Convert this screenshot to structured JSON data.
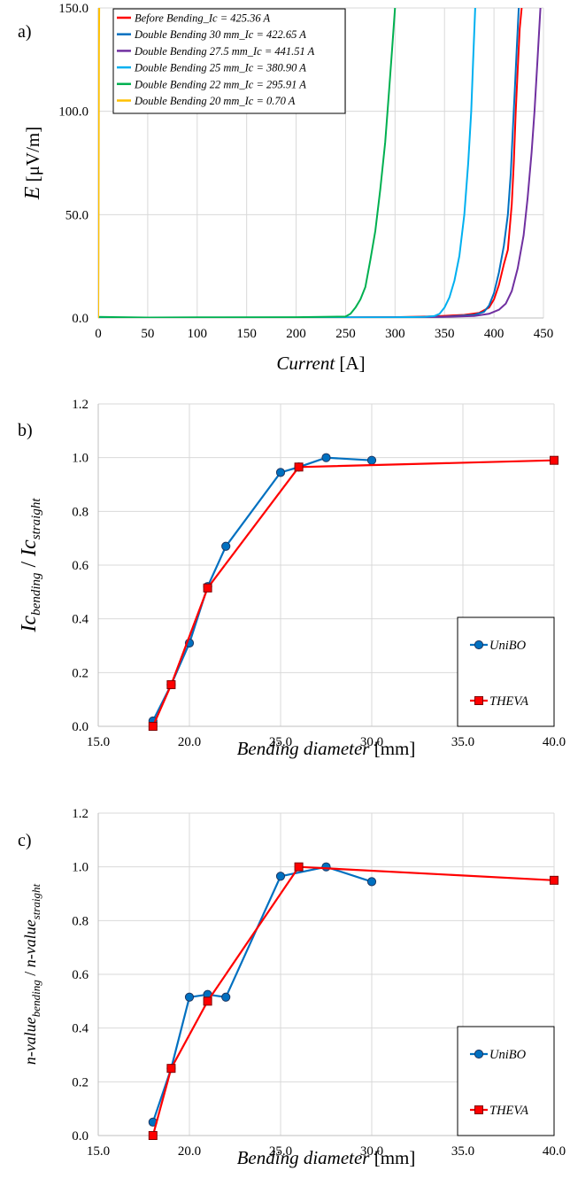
{
  "chart_data": [
    {
      "type": "line",
      "panel_label": "a)",
      "xlabel": "Current",
      "xlabel_unit": "[A]",
      "ylabel": "E",
      "ylabel_unit": "[μV/m]",
      "xlim": [
        0,
        450
      ],
      "ylim": [
        0,
        150
      ],
      "x_ticks": [
        0,
        50,
        100,
        150,
        200,
        250,
        300,
        350,
        400,
        450
      ],
      "y_ticks": [
        "0.0",
        "50.0",
        "100.0",
        "150.0"
      ],
      "grid": true,
      "legend_position": "top-left",
      "series": [
        {
          "name": "Before Bending_Ic = 425.36 A",
          "color": "#ff0000",
          "x": [
            0,
            100,
            200,
            300,
            340,
            370,
            385,
            395,
            400,
            405,
            410,
            414,
            418,
            420,
            422,
            424,
            426,
            428
          ],
          "y": [
            0.2,
            0.2,
            0.2,
            0.4,
            0.8,
            1.5,
            2.5,
            5,
            9,
            16,
            26,
            33,
            55,
            75,
            100,
            120,
            140,
            150
          ]
        },
        {
          "name": "Double Bending 30 mm_Ic = 422.65 A",
          "color": "#0070c0",
          "x": [
            0,
            100,
            200,
            300,
            350,
            380,
            390,
            395,
            400,
            405,
            410,
            414,
            417,
            419,
            421,
            423,
            425
          ],
          "y": [
            0.2,
            0.2,
            0.2,
            0.3,
            0.6,
            1.5,
            3,
            6,
            12,
            22,
            35,
            50,
            70,
            90,
            110,
            130,
            150
          ]
        },
        {
          "name": "Double Bending 27.5 mm_Ic = 441.51 A",
          "color": "#7030a0",
          "x": [
            0,
            100,
            200,
            300,
            350,
            380,
            395,
            405,
            412,
            418,
            424,
            430,
            434,
            438,
            441,
            444,
            447
          ],
          "y": [
            0.2,
            0.2,
            0.2,
            0.3,
            0.5,
            1,
            2,
            4,
            7,
            13,
            24,
            40,
            58,
            80,
            100,
            125,
            150
          ]
        },
        {
          "name": "Double Bending 25 mm_Ic = 380.90 A",
          "color": "#00b0f0",
          "x": [
            0,
            100,
            200,
            300,
            330,
            340,
            345,
            350,
            355,
            360,
            365,
            370,
            374,
            377,
            379,
            381
          ],
          "y": [
            0.2,
            0.2,
            0.2,
            0.3,
            0.5,
            1,
            2,
            5,
            10,
            18,
            30,
            50,
            75,
            100,
            125,
            150
          ]
        },
        {
          "name": "Double Bending 22 mm_Ic = 295.91 A",
          "color": "#00b050",
          "x": [
            0,
            50,
            100,
            200,
            250,
            255,
            260,
            265,
            270,
            275,
            280,
            285,
            290,
            294,
            297,
            300
          ],
          "y": [
            0.5,
            0.2,
            0.3,
            0.4,
            0.7,
            2,
            5,
            9,
            15,
            28,
            42,
            62,
            85,
            110,
            130,
            150
          ]
        },
        {
          "name": "Double Bending 20 mm_Ic = 0.70 A",
          "color": "#ffc000",
          "x": [
            0,
            0.3,
            0.5,
            0.7,
            1.0
          ],
          "y": [
            0,
            30,
            90,
            130,
            150
          ]
        }
      ]
    },
    {
      "type": "line",
      "panel_label": "b)",
      "xlabel": "Bending diameter",
      "xlabel_unit": "[mm]",
      "ylabel": "Ic",
      "ylabel_sub1": "bending",
      "ylabel_sub2": "straight",
      "xlim": [
        15,
        40
      ],
      "ylim": [
        0,
        1.2
      ],
      "x_ticks": [
        "15.0",
        "20.0",
        "25.0",
        "30.0",
        "35.0",
        "40.0"
      ],
      "y_ticks": [
        "0.0",
        "0.2",
        "0.4",
        "0.6",
        "0.8",
        "1.0",
        "1.2"
      ],
      "grid": true,
      "legend_position": "bottom-right",
      "series": [
        {
          "name": "UniBO",
          "color": "#0070c0",
          "marker": "circle",
          "x": [
            18,
            19,
            20,
            21,
            22,
            25,
            26,
            27.5,
            30
          ],
          "y": [
            0.02,
            0.155,
            0.31,
            0.52,
            0.67,
            0.945,
            0.965,
            1.0,
            0.99
          ]
        },
        {
          "name": "THEVA",
          "color": "#ff0000",
          "marker": "square",
          "x": [
            18,
            19,
            21,
            26,
            40
          ],
          "y": [
            0.0,
            0.155,
            0.515,
            0.965,
            0.99
          ]
        }
      ]
    },
    {
      "type": "line",
      "panel_label": "c)",
      "xlabel": "Bending diameter",
      "xlabel_unit": "[mm]",
      "ylabel": "n-value",
      "ylabel_sub1": "bending",
      "ylabel_sub2": "straight",
      "xlim": [
        15,
        40
      ],
      "ylim": [
        0,
        1.2
      ],
      "x_ticks": [
        "15.0",
        "20.0",
        "25.0",
        "30.0",
        "35.0",
        "40.0"
      ],
      "y_ticks": [
        "0.0",
        "0.2",
        "0.4",
        "0.6",
        "0.8",
        "1.0",
        "1.2"
      ],
      "grid": true,
      "legend_position": "bottom-right",
      "series": [
        {
          "name": "UniBO",
          "color": "#0070c0",
          "marker": "circle",
          "x": [
            18,
            19,
            20,
            21,
            22,
            25,
            27.5,
            30
          ],
          "y": [
            0.05,
            0.25,
            0.515,
            0.525,
            0.515,
            0.965,
            1.0,
            0.945
          ]
        },
        {
          "name": "THEVA",
          "color": "#ff0000",
          "marker": "square",
          "x": [
            18,
            19,
            21,
            26,
            40
          ],
          "y": [
            0.0,
            0.25,
            0.5,
            1.0,
            0.95
          ]
        }
      ]
    }
  ]
}
